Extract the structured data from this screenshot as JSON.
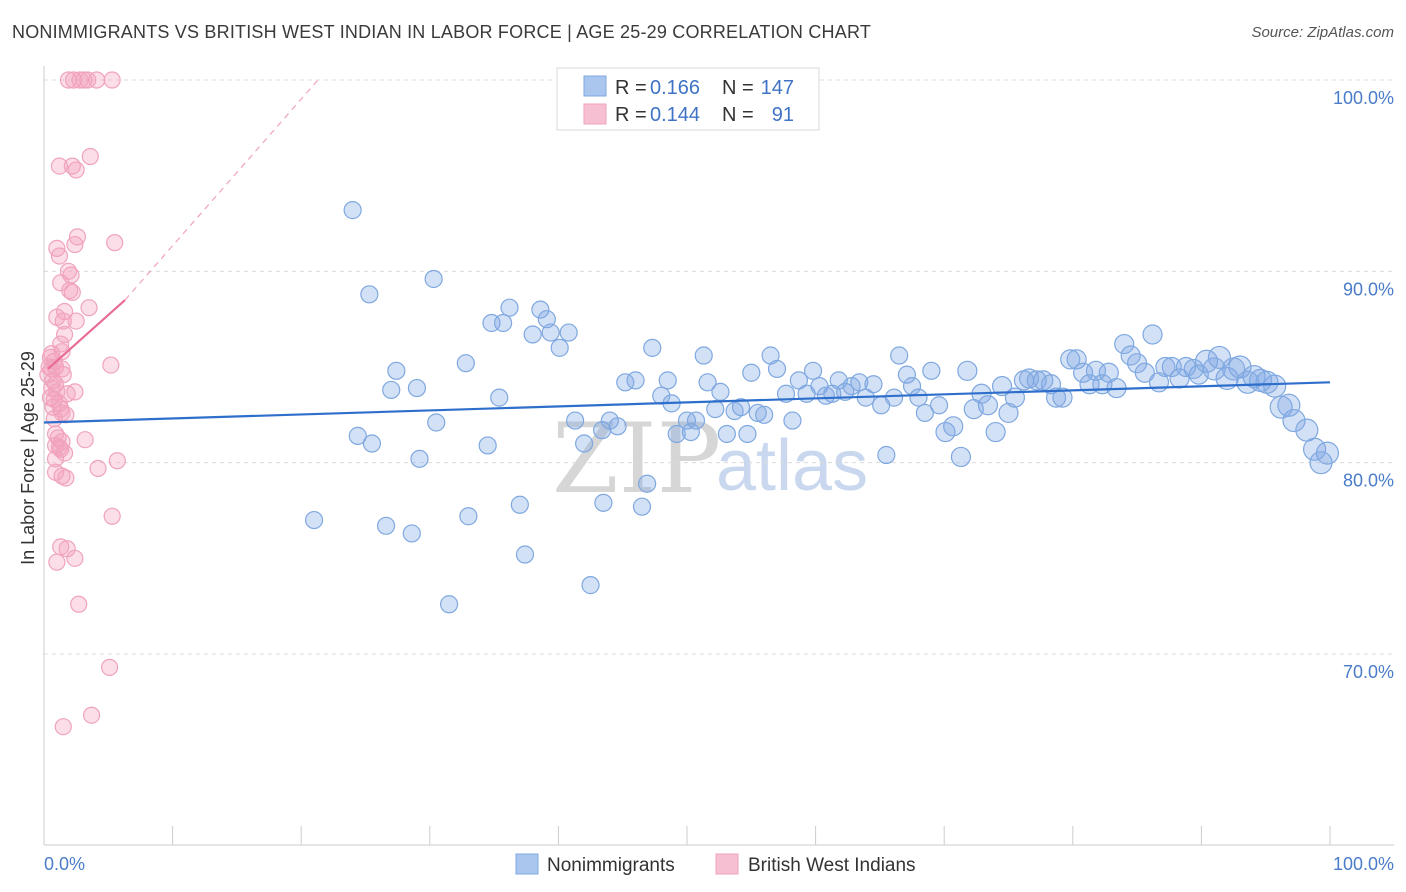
{
  "title": "NONIMMIGRANTS VS BRITISH WEST INDIAN IN LABOR FORCE | AGE 25-29 CORRELATION CHART",
  "source": "Source: ZipAtlas.com",
  "watermark": {
    "zip": "ZIP",
    "atlas": "atlas"
  },
  "chart_data": {
    "type": "scatter",
    "ylabel": "In Labor Force | Age 25-29",
    "x_tick_labels": [
      "0.0%",
      "100.0%"
    ],
    "y_tick_labels": [
      {
        "value": 100,
        "label": "100.0%"
      },
      {
        "value": 90,
        "label": "90.0%"
      },
      {
        "value": 80,
        "label": "80.0%"
      },
      {
        "value": 70,
        "label": "70.0%"
      }
    ],
    "xlim": [
      0,
      100
    ],
    "ylim": [
      60,
      100.8
    ],
    "grid": "horizontal dashed",
    "legend_position": "top-center",
    "legend": [
      {
        "r_label": "R =",
        "r": "0.166",
        "n_label": "N =",
        "n": "147"
      },
      {
        "r_label": "R =",
        "r": "0.144",
        "n_label": "N =",
        "n": "91"
      }
    ],
    "series": [
      {
        "name": "Nonimmigrants",
        "color": "#7fa8e0",
        "trend": {
          "x": [
            0,
            100
          ],
          "y": [
            82.1,
            84.2
          ],
          "color": "#2f6fcc"
        },
        "points": [
          [
            24,
            93.2
          ],
          [
            25.3,
            88.8
          ],
          [
            30.3,
            89.6
          ],
          [
            21,
            77
          ],
          [
            24.4,
            81.4
          ],
          [
            25.5,
            81
          ],
          [
            26.6,
            76.7
          ],
          [
            27,
            83.8
          ],
          [
            27.4,
            84.8
          ],
          [
            28.6,
            76.3
          ],
          [
            29,
            83.9
          ],
          [
            29.2,
            80.2
          ],
          [
            30.5,
            82.1
          ],
          [
            31.5,
            72.6
          ],
          [
            32.8,
            85.2
          ],
          [
            33,
            77.2
          ],
          [
            34.5,
            80.9
          ],
          [
            34.8,
            87.3
          ],
          [
            35.4,
            83.4
          ],
          [
            35.7,
            87.3
          ],
          [
            36.2,
            88.1
          ],
          [
            37,
            77.8
          ],
          [
            37.4,
            75.2
          ],
          [
            38,
            86.7
          ],
          [
            38.6,
            88
          ],
          [
            39.1,
            87.5
          ],
          [
            39.4,
            86.8
          ],
          [
            40.1,
            86
          ],
          [
            40.8,
            86.8
          ],
          [
            41.3,
            82.2
          ],
          [
            42,
            81
          ],
          [
            42.5,
            73.6
          ],
          [
            43.4,
            81.7
          ],
          [
            43.5,
            77.9
          ],
          [
            44,
            82.2
          ],
          [
            44.6,
            81.9
          ],
          [
            45.2,
            84.2
          ],
          [
            46,
            84.3
          ],
          [
            46.5,
            77.7
          ],
          [
            46.9,
            78.9
          ],
          [
            47.3,
            86
          ],
          [
            48,
            83.5
          ],
          [
            48.5,
            84.3
          ],
          [
            48.8,
            83.1
          ],
          [
            49.2,
            81.5
          ],
          [
            50,
            82.2
          ],
          [
            50.3,
            81.6
          ],
          [
            50.7,
            82.2
          ],
          [
            51.3,
            85.6
          ],
          [
            51.6,
            84.2
          ],
          [
            52.2,
            82.8
          ],
          [
            52.6,
            83.7
          ],
          [
            53.1,
            81.5
          ],
          [
            53.7,
            82.7
          ],
          [
            54.2,
            82.9
          ],
          [
            54.7,
            81.5
          ],
          [
            55,
            84.7
          ],
          [
            55.5,
            82.6
          ],
          [
            56,
            82.5
          ],
          [
            56.5,
            85.6
          ],
          [
            57,
            84.9
          ],
          [
            57.7,
            83.6
          ],
          [
            58.2,
            82.2
          ],
          [
            58.7,
            84.3
          ],
          [
            59.3,
            83.6
          ],
          [
            59.8,
            84.8
          ],
          [
            60.3,
            84
          ],
          [
            60.8,
            83.5
          ],
          [
            61.3,
            83.6
          ],
          [
            61.8,
            84.3
          ],
          [
            62.3,
            83.7
          ],
          [
            62.8,
            84
          ],
          [
            63.4,
            84.2
          ],
          [
            63.9,
            83.4
          ],
          [
            64.5,
            84.1
          ],
          [
            65.1,
            83
          ],
          [
            65.5,
            80.4
          ],
          [
            66.1,
            83.4
          ],
          [
            66.5,
            85.6
          ],
          [
            67.1,
            84.6
          ],
          [
            67.5,
            84
          ],
          [
            68,
            83.4
          ],
          [
            68.5,
            82.6
          ],
          [
            69,
            84.8
          ],
          [
            69.6,
            83
          ],
          [
            70.1,
            81.6
          ],
          [
            70.7,
            81.9
          ],
          [
            71.3,
            80.3
          ],
          [
            71.8,
            84.8
          ],
          [
            72.3,
            82.8
          ],
          [
            72.9,
            83.6
          ],
          [
            73.4,
            83
          ],
          [
            74,
            81.6
          ],
          [
            74.5,
            84
          ],
          [
            75,
            82.6
          ],
          [
            75.5,
            83.4
          ],
          [
            76.2,
            84.3
          ],
          [
            76.6,
            84.4
          ],
          [
            77.2,
            84.3
          ],
          [
            77.7,
            84.3
          ],
          [
            78.3,
            84.1
          ],
          [
            78.7,
            83.4
          ],
          [
            79.2,
            83.4
          ],
          [
            79.8,
            85.4
          ],
          [
            80.3,
            85.4
          ],
          [
            80.8,
            84.7
          ],
          [
            81.3,
            84.1
          ],
          [
            81.8,
            84.8
          ],
          [
            82.3,
            84.1
          ],
          [
            82.8,
            84.7
          ],
          [
            83.4,
            83.9
          ],
          [
            84,
            86.2
          ],
          [
            84.5,
            85.6
          ],
          [
            85,
            85.2
          ],
          [
            85.6,
            84.7
          ],
          [
            86.2,
            86.7
          ],
          [
            86.7,
            84.2
          ],
          [
            87.2,
            85
          ],
          [
            87.7,
            85
          ],
          [
            88.3,
            84.4
          ],
          [
            88.8,
            85
          ],
          [
            89.4,
            84.9
          ],
          [
            89.8,
            84.6
          ],
          [
            90.4,
            85.3
          ],
          [
            91,
            84.9
          ],
          [
            91.4,
            85.5
          ],
          [
            92,
            84.4
          ],
          [
            92.5,
            84.9
          ],
          [
            93,
            85
          ],
          [
            93.6,
            84.2
          ],
          [
            94.1,
            84.5
          ],
          [
            94.6,
            84.3
          ],
          [
            95.1,
            84.2
          ],
          [
            95.7,
            84
          ],
          [
            96.2,
            82.9
          ],
          [
            96.8,
            83
          ],
          [
            97.2,
            82.2
          ],
          [
            98.2,
            81.7
          ],
          [
            98.8,
            80.7
          ],
          [
            99.3,
            80
          ],
          [
            99.8,
            80.5
          ]
        ]
      },
      {
        "name": "British West Indians",
        "color": "#f0a3bd",
        "trend": {
          "x": [
            0.3,
            6.3
          ],
          "y": [
            84.9,
            88.5
          ],
          "color": "#e86d96"
        },
        "trend_extension": {
          "x": [
            6.3,
            21.3
          ],
          "y": [
            88.5,
            100
          ],
          "color": "#f0a3bd"
        },
        "points": [
          [
            1.9,
            100
          ],
          [
            2.3,
            100
          ],
          [
            2.8,
            100
          ],
          [
            3.1,
            100
          ],
          [
            3.4,
            100
          ],
          [
            4.1,
            100
          ],
          [
            5.3,
            100
          ],
          [
            3.6,
            96
          ],
          [
            1.2,
            95.5
          ],
          [
            2.2,
            95.5
          ],
          [
            2.5,
            95.3
          ],
          [
            5.5,
            91.5
          ],
          [
            1,
            91.2
          ],
          [
            2.4,
            91.4
          ],
          [
            2.6,
            91.8
          ],
          [
            1.2,
            90.8
          ],
          [
            1.9,
            90
          ],
          [
            2.1,
            89.8
          ],
          [
            1.3,
            89.4
          ],
          [
            2,
            89
          ],
          [
            2.2,
            88.9
          ],
          [
            3.5,
            88.1
          ],
          [
            1.6,
            87.9
          ],
          [
            1,
            87.6
          ],
          [
            1.5,
            87.4
          ],
          [
            2.5,
            87.4
          ],
          [
            1.6,
            86.7
          ],
          [
            1.3,
            86.2
          ],
          [
            1.4,
            85.8
          ],
          [
            0.6,
            85.7
          ],
          [
            0.5,
            85.5
          ],
          [
            0.8,
            85.3
          ],
          [
            0.9,
            85
          ],
          [
            0.4,
            85
          ],
          [
            0.6,
            84.9
          ],
          [
            1.4,
            84.9
          ],
          [
            1.5,
            84.6
          ],
          [
            5.2,
            85.1
          ],
          [
            0.3,
            84.6
          ],
          [
            0.7,
            84.3
          ],
          [
            0.9,
            84.1
          ],
          [
            0.6,
            83.9
          ],
          [
            1,
            83.7
          ],
          [
            1.8,
            83.6
          ],
          [
            2.4,
            83.7
          ],
          [
            0.5,
            83.4
          ],
          [
            0.8,
            83.3
          ],
          [
            1.2,
            83.1
          ],
          [
            0.7,
            82.9
          ],
          [
            1.3,
            82.8
          ],
          [
            1.4,
            82.6
          ],
          [
            0.8,
            82.3
          ],
          [
            1.7,
            82.5
          ],
          [
            0.9,
            81.5
          ],
          [
            1.1,
            81.3
          ],
          [
            1.4,
            81.1
          ],
          [
            3.2,
            81.2
          ],
          [
            0.9,
            80.9
          ],
          [
            1.2,
            80.8
          ],
          [
            1.3,
            80.7
          ],
          [
            1.6,
            80.5
          ],
          [
            0.9,
            80.2
          ],
          [
            5.7,
            80.1
          ],
          [
            4.2,
            79.7
          ],
          [
            1.4,
            79.3
          ],
          [
            1.7,
            79.2
          ],
          [
            0.9,
            79.5
          ],
          [
            5.3,
            77.2
          ],
          [
            1.3,
            75.6
          ],
          [
            1.8,
            75.5
          ],
          [
            1,
            74.8
          ],
          [
            2.4,
            75
          ],
          [
            2.7,
            72.6
          ],
          [
            5.1,
            69.3
          ],
          [
            1.5,
            66.2
          ],
          [
            3.7,
            66.8
          ]
        ]
      }
    ]
  },
  "bottom_legend": [
    {
      "label": "Nonimmigrants",
      "color": "#aac6ee",
      "border": "#7fa8e0"
    },
    {
      "label": "British West Indians",
      "color": "#f7c0d2",
      "border": "#f0a3bd"
    }
  ]
}
